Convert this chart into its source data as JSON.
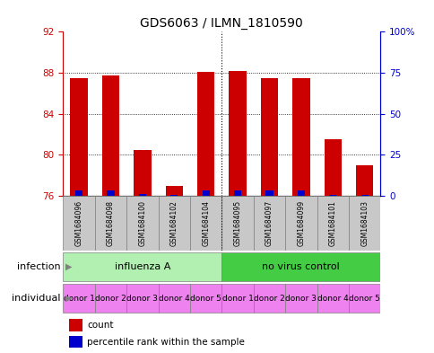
{
  "title": "GDS6063 / ILMN_1810590",
  "samples": [
    "GSM1684096",
    "GSM1684098",
    "GSM1684100",
    "GSM1684102",
    "GSM1684104",
    "GSM1684095",
    "GSM1684097",
    "GSM1684099",
    "GSM1684101",
    "GSM1684103"
  ],
  "red_values": [
    87.5,
    87.7,
    80.5,
    77.0,
    88.05,
    88.15,
    87.5,
    87.5,
    81.5,
    79.0
  ],
  "blue_values": [
    76.55,
    76.55,
    76.2,
    76.1,
    76.55,
    76.55,
    76.55,
    76.55,
    76.1,
    76.1
  ],
  "ylim": [
    76,
    92
  ],
  "yticks_left": [
    76,
    80,
    84,
    88,
    92
  ],
  "yticks_right": [
    0,
    25,
    50,
    75,
    100
  ],
  "yright_labels": [
    "0",
    "25",
    "50",
    "75",
    "100%"
  ],
  "infection_groups": [
    {
      "label": "influenza A",
      "start": 0,
      "end": 5,
      "color": "#b2f0b2"
    },
    {
      "label": "no virus control",
      "start": 5,
      "end": 10,
      "color": "#44cc44"
    }
  ],
  "individuals": [
    "donor 1",
    "donor 2",
    "donor 3",
    "donor 4",
    "donor 5",
    "donor 1",
    "donor 2",
    "donor 3",
    "donor 4",
    "donor 5"
  ],
  "individual_color": "#ee82ee",
  "bar_bottom": 76,
  "red_color": "#cc0000",
  "blue_color": "#0000cc",
  "left_axis_color": "#cc0000",
  "right_axis_color": "#0000cc",
  "title_fontsize": 10,
  "tick_fontsize": 7.5,
  "legend_fontsize": 7.5,
  "annot_fontsize": 8,
  "sample_fontsize": 5.5,
  "individual_fontsize": 6.5
}
